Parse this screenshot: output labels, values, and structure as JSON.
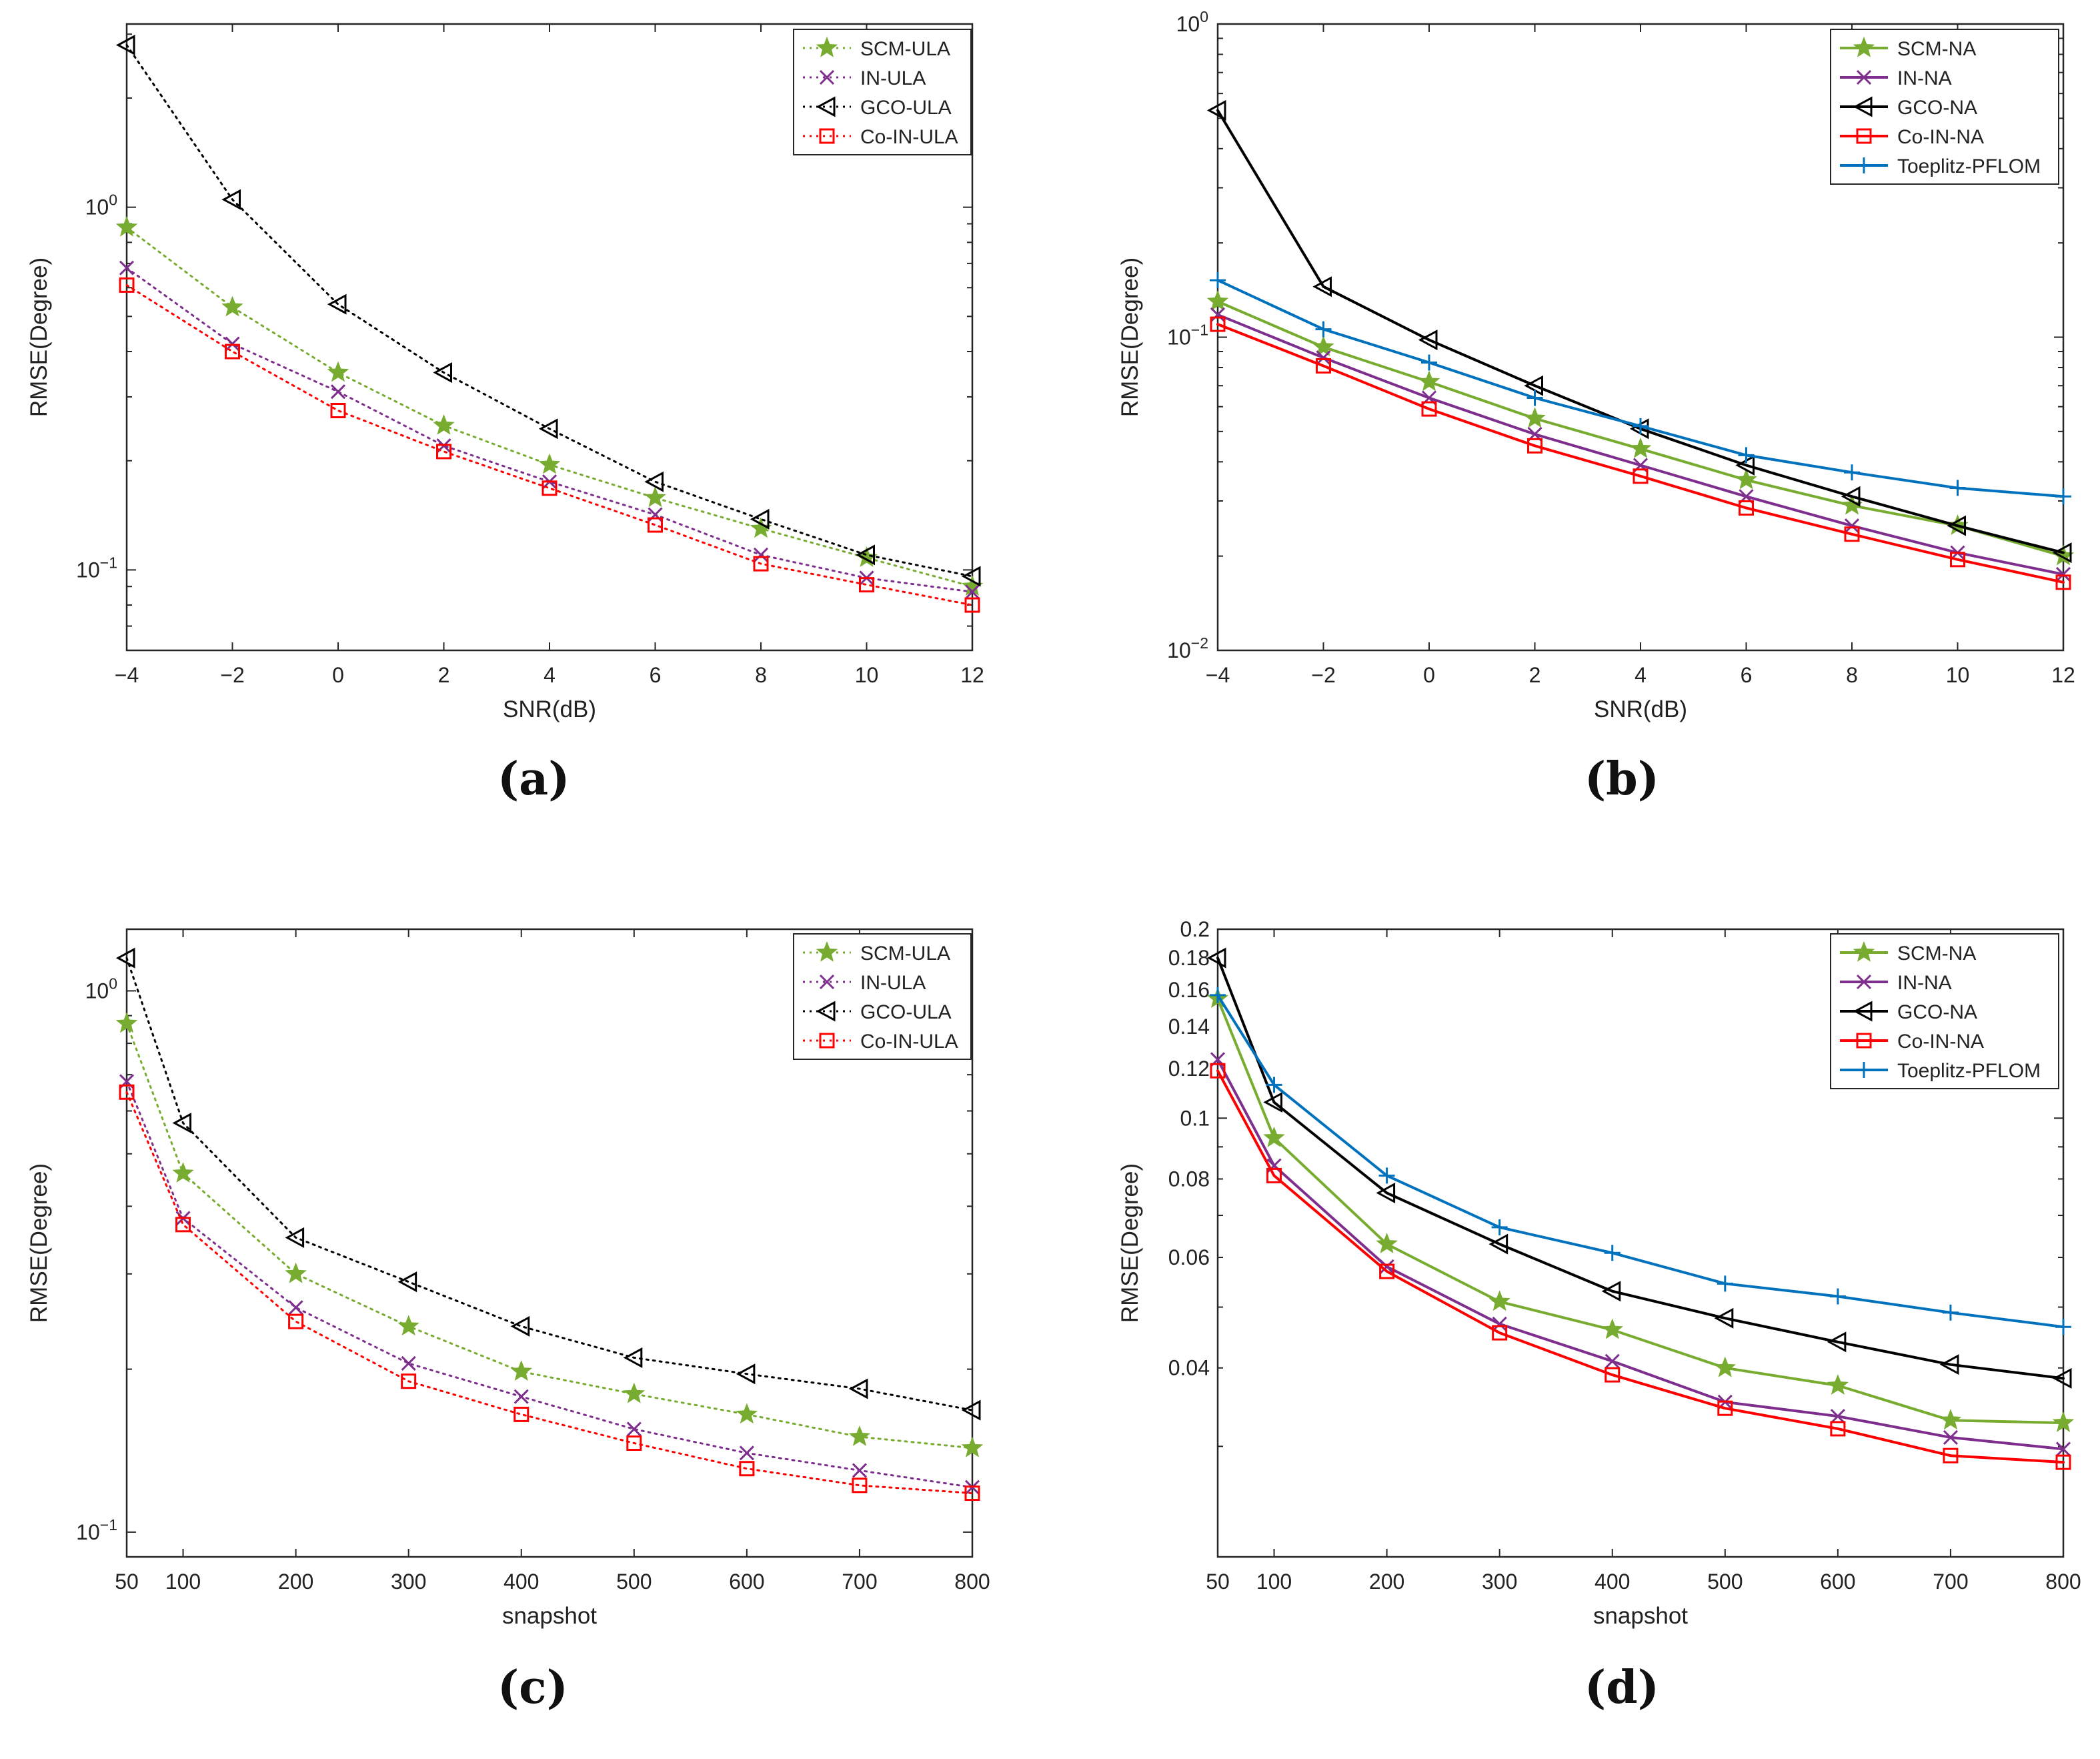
{
  "figure": {
    "panel_labels": [
      "(a)",
      "(b)",
      "(c)",
      "(d)"
    ]
  },
  "chart_data": [
    {
      "type": "line",
      "panel": "(a)",
      "yscale": "log",
      "xlabel": "SNR(dB)",
      "ylabel": "RMSE(Degree)",
      "x": [
        -4,
        -2,
        0,
        2,
        4,
        6,
        8,
        10,
        12
      ],
      "xlim": [
        -4,
        12
      ],
      "ylim": [
        0.06,
        3.2
      ],
      "xticks": [
        "−4",
        "−2",
        "0",
        "2",
        "4",
        "6",
        "8",
        "10",
        "12"
      ],
      "yticks": [
        {
          "value": 0.1,
          "base": "10",
          "exp": "−1"
        },
        {
          "value": 1,
          "base": "10",
          "exp": "0"
        }
      ],
      "legend_position": "top-right",
      "series": [
        {
          "name": "SCM-ULA",
          "color": "#77ac30",
          "dash": "dotted",
          "marker": "star",
          "values": [
            0.88,
            0.53,
            0.35,
            0.25,
            0.195,
            0.158,
            0.13,
            0.108,
            0.09
          ]
        },
        {
          "name": "IN-ULA",
          "color": "#7e2f8e",
          "dash": "dotted",
          "marker": "x",
          "values": [
            0.68,
            0.42,
            0.31,
            0.22,
            0.175,
            0.142,
            0.11,
            0.095,
            0.087
          ]
        },
        {
          "name": "GCO-ULA",
          "color": "#000000",
          "dash": "dotted",
          "marker": "triangle-left",
          "values": [
            2.8,
            1.05,
            0.54,
            0.35,
            0.245,
            0.175,
            0.138,
            0.11,
            0.096
          ]
        },
        {
          "name": "Co-IN-ULA",
          "color": "#ff0000",
          "dash": "dotted",
          "marker": "square",
          "values": [
            0.61,
            0.4,
            0.275,
            0.212,
            0.168,
            0.133,
            0.104,
            0.091,
            0.08
          ]
        }
      ]
    },
    {
      "type": "line",
      "panel": "(b)",
      "yscale": "log",
      "xlabel": "SNR(dB)",
      "ylabel": "RMSE(Degree)",
      "x": [
        -4,
        -2,
        0,
        2,
        4,
        6,
        8,
        10,
        12
      ],
      "xlim": [
        -4,
        12
      ],
      "ylim": [
        0.01,
        1
      ],
      "xticks": [
        "−4",
        "−2",
        "0",
        "2",
        "4",
        "6",
        "8",
        "10",
        "12"
      ],
      "yticks": [
        {
          "value": 0.01,
          "base": "10",
          "exp": "−2"
        },
        {
          "value": 0.1,
          "base": "10",
          "exp": "−1"
        },
        {
          "value": 1,
          "base": "10",
          "exp": "0"
        }
      ],
      "legend_position": "top-right",
      "series": [
        {
          "name": "SCM-NA",
          "color": "#77ac30",
          "dash": "solid",
          "marker": "star",
          "values": [
            0.13,
            0.093,
            0.072,
            0.055,
            0.044,
            0.035,
            0.029,
            0.025,
            0.02
          ]
        },
        {
          "name": "IN-NA",
          "color": "#7e2f8e",
          "dash": "solid",
          "marker": "x",
          "values": [
            0.118,
            0.086,
            0.064,
            0.049,
            0.039,
            0.031,
            0.025,
            0.0205,
            0.0175
          ]
        },
        {
          "name": "GCO-NA",
          "color": "#000000",
          "dash": "solid",
          "marker": "triangle-left",
          "values": [
            0.53,
            0.145,
            0.098,
            0.07,
            0.051,
            0.039,
            0.031,
            0.025,
            0.0205
          ]
        },
        {
          "name": "Co-IN-NA",
          "color": "#ff0000",
          "dash": "solid",
          "marker": "square",
          "values": [
            0.11,
            0.081,
            0.059,
            0.045,
            0.036,
            0.0285,
            0.0235,
            0.0195,
            0.0165
          ]
        },
        {
          "name": "Toeplitz-PFLOM",
          "color": "#0072bd",
          "dash": "solid",
          "marker": "plus",
          "values": [
            0.152,
            0.106,
            0.083,
            0.064,
            0.052,
            0.042,
            0.037,
            0.033,
            0.031
          ]
        }
      ]
    },
    {
      "type": "line",
      "panel": "(c)",
      "yscale": "log",
      "xlabel": "snapshot",
      "ylabel": "RMSE(Degree)",
      "x": [
        50,
        100,
        200,
        300,
        400,
        500,
        600,
        700,
        800
      ],
      "xlim": [
        50,
        800
      ],
      "ylim": [
        0.09,
        1.3
      ],
      "xticks": [
        "50",
        "100",
        "200",
        "300",
        "400",
        "500",
        "600",
        "700",
        "800"
      ],
      "yticks": [
        {
          "value": 0.1,
          "base": "10",
          "exp": "−1"
        },
        {
          "value": 1,
          "base": "10",
          "exp": "0"
        }
      ],
      "legend_position": "top-right",
      "series": [
        {
          "name": "SCM-ULA",
          "color": "#77ac30",
          "dash": "dotted",
          "marker": "star",
          "values": [
            0.87,
            0.46,
            0.3,
            0.24,
            0.198,
            0.18,
            0.165,
            0.15,
            0.143
          ]
        },
        {
          "name": "IN-ULA",
          "color": "#7e2f8e",
          "dash": "dotted",
          "marker": "x",
          "values": [
            0.68,
            0.38,
            0.26,
            0.205,
            0.178,
            0.155,
            0.14,
            0.13,
            0.121
          ]
        },
        {
          "name": "GCO-ULA",
          "color": "#000000",
          "dash": "dotted",
          "marker": "triangle-left",
          "values": [
            1.15,
            0.57,
            0.35,
            0.29,
            0.24,
            0.21,
            0.196,
            0.184,
            0.168
          ]
        },
        {
          "name": "Co-IN-ULA",
          "color": "#ff0000",
          "dash": "dotted",
          "marker": "square",
          "values": [
            0.65,
            0.37,
            0.245,
            0.19,
            0.165,
            0.146,
            0.131,
            0.122,
            0.118
          ]
        }
      ]
    },
    {
      "type": "line",
      "panel": "(d)",
      "yscale": "log",
      "xlabel": "snapshot",
      "ylabel": "RMSE(Degree)",
      "x": [
        50,
        100,
        200,
        300,
        400,
        500,
        600,
        700,
        800
      ],
      "xlim": [
        50,
        800
      ],
      "ylim": [
        0.02,
        0.2
      ],
      "xticks": [
        "50",
        "100",
        "200",
        "300",
        "400",
        "500",
        "600",
        "700",
        "800"
      ],
      "yticks": [
        {
          "value": 0.04,
          "label": "0.04"
        },
        {
          "value": 0.06,
          "label": "0.06"
        },
        {
          "value": 0.08,
          "label": "0.08"
        },
        {
          "value": 0.1,
          "label": "0.1"
        },
        {
          "value": 0.12,
          "label": "0.12"
        },
        {
          "value": 0.14,
          "label": "0.14"
        },
        {
          "value": 0.16,
          "label": "0.16"
        },
        {
          "value": 0.18,
          "label": "0.18"
        },
        {
          "value": 0.2,
          "label": "0.2"
        }
      ],
      "legend_position": "top-right",
      "series": [
        {
          "name": "SCM-NA",
          "color": "#77ac30",
          "dash": "solid",
          "marker": "star",
          "values": [
            0.155,
            0.093,
            0.063,
            0.051,
            0.046,
            0.04,
            0.0375,
            0.033,
            0.0327
          ]
        },
        {
          "name": "IN-NA",
          "color": "#7e2f8e",
          "dash": "solid",
          "marker": "x",
          "values": [
            0.124,
            0.084,
            0.058,
            0.047,
            0.041,
            0.0353,
            0.0335,
            0.031,
            0.0297
          ]
        },
        {
          "name": "GCO-NA",
          "color": "#000000",
          "dash": "solid",
          "marker": "triangle-left",
          "values": [
            0.18,
            0.106,
            0.076,
            0.063,
            0.053,
            0.048,
            0.044,
            0.0405,
            0.0385
          ]
        },
        {
          "name": "Co-IN-NA",
          "color": "#ff0000",
          "dash": "solid",
          "marker": "square",
          "values": [
            0.119,
            0.081,
            0.057,
            0.0455,
            0.039,
            0.0345,
            0.032,
            0.029,
            0.0283
          ]
        },
        {
          "name": "Toeplitz-PFLOM",
          "color": "#0072bd",
          "dash": "solid",
          "marker": "plus",
          "values": [
            0.157,
            0.113,
            0.081,
            0.067,
            0.061,
            0.0545,
            0.052,
            0.049,
            0.0465
          ]
        }
      ]
    }
  ]
}
